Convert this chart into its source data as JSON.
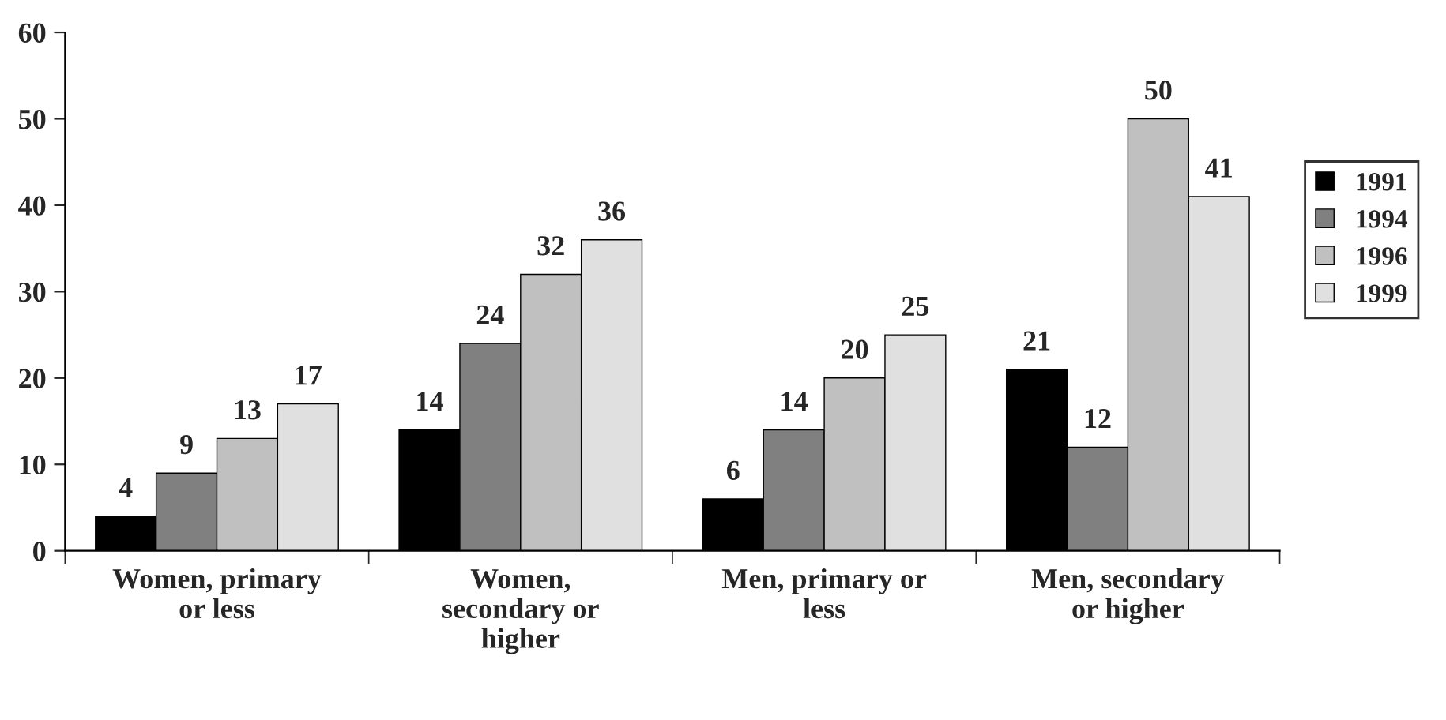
{
  "chart_data": {
    "type": "bar",
    "categories": [
      "Women, primary\nor less",
      "Women,\nsecondary or\nhigher",
      "Men, primary or\nless",
      "Men, secondary\nor higher"
    ],
    "series": [
      {
        "name": "1991",
        "color": "#000000",
        "values": [
          4,
          14,
          6,
          21
        ]
      },
      {
        "name": "1994",
        "color": "#808080",
        "values": [
          9,
          24,
          14,
          12
        ]
      },
      {
        "name": "1996",
        "color": "#c0c0c0",
        "values": [
          13,
          32,
          20,
          50
        ]
      },
      {
        "name": "1999",
        "color": "#e0e0e0",
        "values": [
          17,
          36,
          25,
          41
        ]
      }
    ],
    "ylim": [
      0,
      60
    ],
    "yticks": [
      0,
      10,
      20,
      30,
      40,
      50,
      60
    ],
    "data_labels": true,
    "legend": "right",
    "grid": false
  }
}
